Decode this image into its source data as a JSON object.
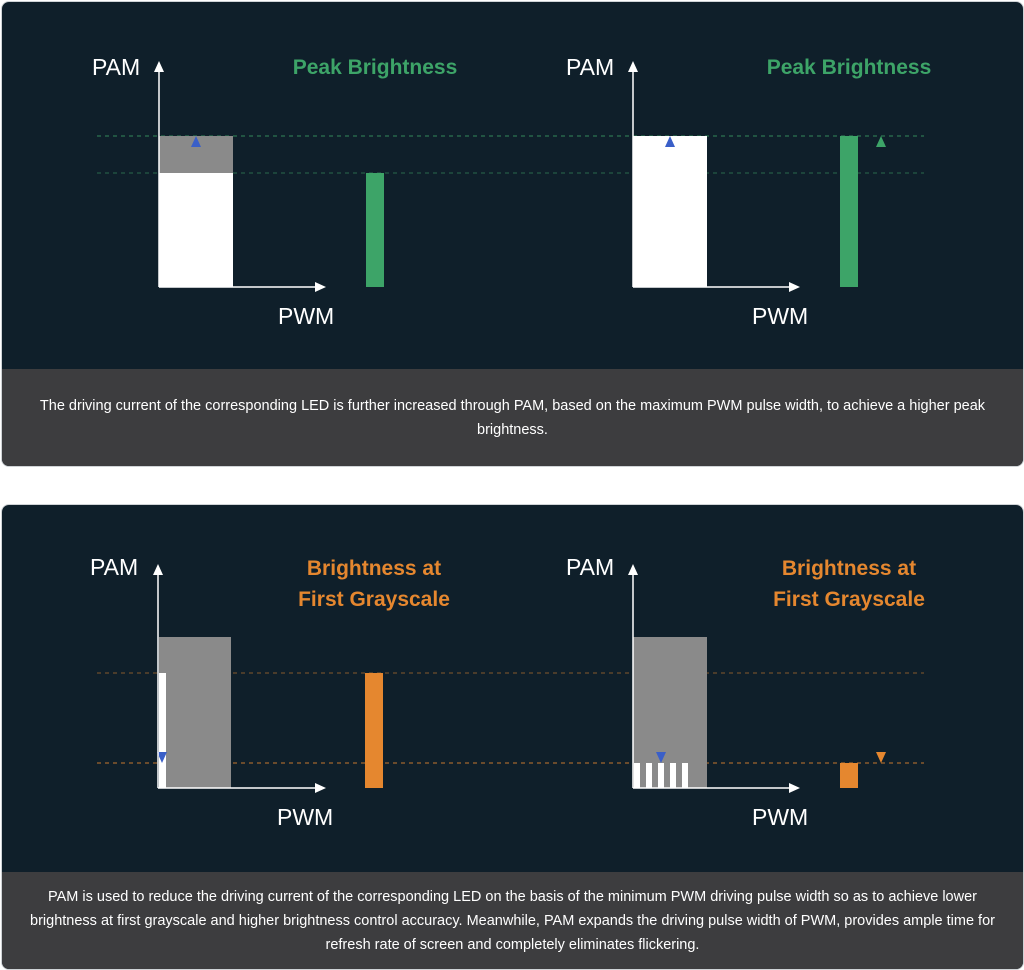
{
  "colors": {
    "background": "#0f1f2a",
    "caption_bg": "#3d3d3f",
    "green": "#3da468",
    "orange": "#e5872f",
    "gray": "#8a8a8a",
    "blue_arrow": "#3a5fc8",
    "white": "#ffffff"
  },
  "panel1": {
    "caption": "The driving current of the corresponding LED is further increased through PAM, based on the maximum PWM pulse width, to achieve a higher peak brightness.",
    "left": {
      "y_axis": "PAM",
      "x_axis": "PWM",
      "title": "Peak Brightness"
    },
    "right": {
      "y_axis": "PAM",
      "x_axis": "PWM",
      "title": "Peak Brightness"
    }
  },
  "panel2": {
    "caption": "PAM is used to reduce the driving current of the corresponding LED on the basis of the minimum PWM driving pulse width so as to achieve lower brightness at first grayscale and higher brightness control accuracy. Meanwhile, PAM expands the driving pulse width of PWM, provides ample time for refresh rate of screen and completely eliminates flickering.",
    "left": {
      "y_axis": "PAM",
      "x_axis": "PWM",
      "title_line1": "Brightness at",
      "title_line2": "First Grayscale"
    },
    "right": {
      "y_axis": "PAM",
      "x_axis": "PWM",
      "title_line1": "Brightness at",
      "title_line2": "First Grayscale"
    }
  }
}
